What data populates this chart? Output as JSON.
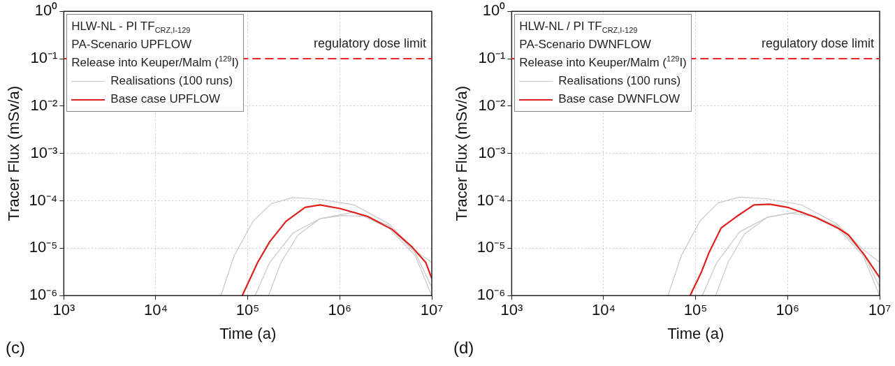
{
  "chart_data": [
    {
      "type": "line",
      "xlabel": "Time (a)",
      "ylabel": "Tracer Flux (mSv/a)",
      "log": "xy",
      "grid": true,
      "marker": "none",
      "legend": "top left",
      "legend_title": "HLW-NL - PI TF$_{CRZ,I-129}$\nPA-Scenario UPFLOW\nRelease into Keuper/Malm ($^{129}$I)",
      "xlim": [
        1000,
        10000000
      ],
      "xticks": [
        {
          "value": 1000,
          "label": "10³"
        },
        {
          "value": 10000,
          "label": "10⁴"
        },
        {
          "value": 100000,
          "label": "10⁵"
        },
        {
          "value": 1000000,
          "label": "10⁶"
        },
        {
          "value": 10000000,
          "label": "10⁷"
        }
      ],
      "ylim": [
        1e-06,
        1
      ],
      "yticks": [
        {
          "value": 1e-06,
          "label": "10⁻⁶"
        },
        {
          "value": 1e-05,
          "label": "10⁻⁵"
        },
        {
          "value": 0.0001,
          "label": "10⁻⁴"
        },
        {
          "value": 0.001,
          "label": "10⁻³"
        },
        {
          "value": 0.01,
          "label": "10⁻²"
        },
        {
          "value": 0.1,
          "label": "10⁻¹"
        },
        {
          "value": 1,
          "label": "10⁰"
        }
      ],
      "ref_lines": [
        {
          "axis": "y",
          "value": 0.1,
          "label": "regulatory dose limit",
          "color": "#e8262a",
          "line_style": "dashed"
        }
      ],
      "annotations": [
        "(c)"
      ],
      "series": [
        {
          "name": "Realisations (100 runs)",
          "color": "#c8c8c8",
          "x": [
            51000,
            71000,
            114000,
            180000,
            310000,
            610000,
            1430000,
            3400000,
            6600000,
            10000000
          ],
          "values": [
            1e-06,
            6.9e-06,
            3.7e-05,
            8.7e-05,
            0.000117,
            0.000108,
            8.2e-05,
            3.3e-05,
            8.8e-06,
            5e-06
          ]
        },
        {
          "color": "#c8c8c8",
          "x": [
            120000,
            173000,
            310000,
            610000,
            1430000,
            3400000,
            6600000,
            10000000
          ],
          "values": [
            1e-06,
            5e-06,
            2.1e-05,
            4.2e-05,
            5.8e-05,
            2.7e-05,
            7e-06,
            1e-06
          ]
        },
        {
          "color": "#c8c8c8",
          "x": [
            168000,
            230000,
            350000,
            610000,
            1060000,
            2000000,
            3400000,
            6600000,
            10000000
          ],
          "values": [
            1e-06,
            5e-06,
            1.9e-05,
            4.2e-05,
            4.9e-05,
            4.7e-05,
            3e-05,
            8e-06,
            1.5e-06
          ]
        },
        {
          "name": "Base case UPFLOW",
          "color": "#e0201c",
          "x": [
            87000,
            128000,
            173000,
            260000,
            420000,
            610000,
            1000000,
            2000000,
            3700000,
            6000000,
            8600000,
            10000000
          ],
          "values": [
            1e-06,
            5e-06,
            1.37e-05,
            3.7e-05,
            7.3e-05,
            8.2e-05,
            6.9e-05,
            4.7e-05,
            2.5e-05,
            1.1e-05,
            5e-06,
            2.3e-06
          ]
        }
      ]
    },
    {
      "type": "line",
      "xlabel": "Time (a)",
      "ylabel": "Tracer Flux (mSv/a)",
      "log": "xy",
      "grid": true,
      "marker": "none",
      "legend": "top left",
      "legend_title": "HLW-NL / PI TF$_{CRZ,I-129}$\nPA-Scenario DWNFLOW\nRelease into Keuper/Malm ($^{129}$I)",
      "xlim": [
        1000,
        10000000
      ],
      "xticks": [
        {
          "value": 1000,
          "label": "10³"
        },
        {
          "value": 10000,
          "label": "10⁴"
        },
        {
          "value": 100000,
          "label": "10⁵"
        },
        {
          "value": 1000000,
          "label": "10⁶"
        },
        {
          "value": 10000000,
          "label": "10⁷"
        }
      ],
      "ylim": [
        1e-06,
        1
      ],
      "yticks": [
        {
          "value": 1e-06,
          "label": "10⁻⁶"
        },
        {
          "value": 1e-05,
          "label": "10⁻⁵"
        },
        {
          "value": 0.0001,
          "label": "10⁻⁴"
        },
        {
          "value": 0.001,
          "label": "10⁻³"
        },
        {
          "value": 0.01,
          "label": "10⁻²"
        },
        {
          "value": 0.1,
          "label": "10⁻¹"
        },
        {
          "value": 1,
          "label": "10⁰"
        }
      ],
      "ref_lines": [
        {
          "axis": "y",
          "value": 0.1,
          "label": "regulatory dose limit",
          "color": "#e8262a",
          "line_style": "dashed"
        }
      ],
      "annotations": [
        "(d)"
      ],
      "series": [
        {
          "name": "Realisations (100 runs)",
          "color": "#c8c8c8",
          "x": [
            50000,
            70000,
            112000,
            175000,
            300000,
            600000,
            1400000,
            3400000,
            6600000,
            10000000
          ],
          "values": [
            1e-06,
            7e-06,
            3.8e-05,
            9e-05,
            0.00012,
            0.00011,
            8.3e-05,
            3.3e-05,
            9.5e-06,
            5e-06
          ]
        },
        {
          "color": "#c8c8c8",
          "x": [
            118000,
            170000,
            300000,
            600000,
            1400000,
            3400000,
            6600000,
            10000000
          ],
          "values": [
            1e-06,
            5e-06,
            2.2e-05,
            4.5e-05,
            6e-05,
            2.8e-05,
            7e-06,
            1e-06
          ]
        },
        {
          "color": "#c8c8c8",
          "x": [
            165000,
            225000,
            340000,
            600000,
            1050000,
            2000000,
            3400000,
            6600000,
            10000000
          ],
          "values": [
            1e-06,
            5e-06,
            2e-05,
            4.5e-05,
            5.5e-05,
            4.7e-05,
            3e-05,
            8e-06,
            1.5e-06
          ]
        },
        {
          "name": "Base case DWNFLOW",
          "color": "#e0201c",
          "x": [
            87000,
            116000,
            139000,
            190000,
            280000,
            430000,
            640000,
            1000000,
            2000000,
            3600000,
            4600000,
            6900000,
            10000000
          ],
          "values": [
            1e-06,
            3.2e-06,
            7.9e-06,
            2.7e-05,
            4.7e-05,
            8.2e-05,
            8.5e-05,
            7.3e-05,
            4.5e-05,
            2.6e-05,
            1.9e-05,
            7e-06,
            2.4e-06
          ]
        }
      ]
    }
  ]
}
